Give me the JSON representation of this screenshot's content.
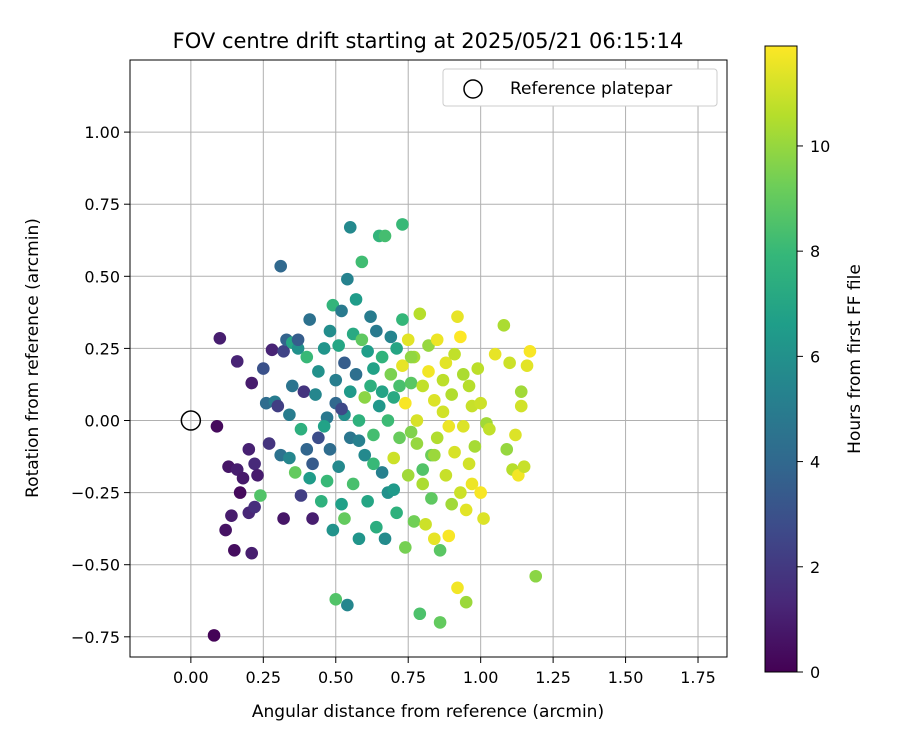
{
  "chart_data": {
    "type": "scatter",
    "title": "FOV centre drift starting at 2025/05/21 06:15:14",
    "xlabel": "Angular distance from reference (arcmin)",
    "ylabel": "Rotation from reference (arcmin)",
    "xlim": [
      -0.21,
      1.85
    ],
    "ylim": [
      -0.82,
      1.25
    ],
    "xticks": [
      0.0,
      0.25,
      0.5,
      0.75,
      1.0,
      1.25,
      1.5,
      1.75
    ],
    "xtick_labels": [
      "0.00",
      "0.25",
      "0.50",
      "0.75",
      "1.00",
      "1.25",
      "1.50",
      "1.75"
    ],
    "yticks": [
      -0.75,
      -0.5,
      -0.25,
      0.0,
      0.25,
      0.5,
      0.75,
      1.0
    ],
    "ytick_labels": [
      "−0.75",
      "−0.50",
      "−0.25",
      "0.00",
      "0.25",
      "0.50",
      "0.75",
      "1.00"
    ],
    "grid": true,
    "legend": {
      "placement": "top-right",
      "entries": [
        "Reference platepar"
      ]
    },
    "reference_point": {
      "x": 0.0,
      "y": 0.0
    },
    "colorbar": {
      "label": "Hours from first FF file",
      "range": [
        0,
        11.9
      ],
      "ticks": [
        0,
        2,
        4,
        6,
        8,
        10
      ],
      "tick_labels": [
        "0",
        "2",
        "4",
        "6",
        "8",
        "10"
      ],
      "colormap": [
        "#440154",
        "#482878",
        "#3e4989",
        "#31688e",
        "#26828e",
        "#1f9e89",
        "#35b779",
        "#6ece58",
        "#b5de2b",
        "#fde725"
      ]
    },
    "points": [
      [
        0.08,
        -0.745,
        0.1
      ],
      [
        0.09,
        -0.02,
        0.3
      ],
      [
        0.1,
        0.285,
        1.0
      ],
      [
        0.12,
        -0.38,
        0.6
      ],
      [
        0.13,
        -0.16,
        0.7
      ],
      [
        0.14,
        -0.33,
        0.9
      ],
      [
        0.15,
        -0.45,
        0.4
      ],
      [
        0.16,
        -0.17,
        1.0
      ],
      [
        0.16,
        0.205,
        1.2
      ],
      [
        0.17,
        -0.25,
        0.3
      ],
      [
        0.18,
        -0.2,
        0.8
      ],
      [
        0.2,
        -0.32,
        1.3
      ],
      [
        0.2,
        -0.1,
        1.1
      ],
      [
        0.21,
        -0.46,
        1.0
      ],
      [
        0.21,
        0.13,
        0.9
      ],
      [
        0.22,
        -0.15,
        1.4
      ],
      [
        0.22,
        -0.3,
        1.6
      ],
      [
        0.23,
        -0.19,
        0.9
      ],
      [
        0.24,
        -0.26,
        8.6
      ],
      [
        0.25,
        0.18,
        3.0
      ],
      [
        0.26,
        0.06,
        4.2
      ],
      [
        0.27,
        -0.08,
        1.8
      ],
      [
        0.28,
        0.245,
        1.2
      ],
      [
        0.29,
        0.065,
        5.0
      ],
      [
        0.3,
        0.05,
        2.2
      ],
      [
        0.31,
        -0.12,
        4.5
      ],
      [
        0.31,
        0.535,
        4.0
      ],
      [
        0.32,
        -0.34,
        0.7
      ],
      [
        0.32,
        0.24,
        2.4
      ],
      [
        0.33,
        0.28,
        3.8
      ],
      [
        0.34,
        -0.13,
        5.5
      ],
      [
        0.34,
        0.02,
        5.0
      ],
      [
        0.35,
        0.27,
        7.0
      ],
      [
        0.35,
        0.12,
        4.6
      ],
      [
        0.36,
        -0.18,
        9.0
      ],
      [
        0.37,
        0.25,
        6.0
      ],
      [
        0.37,
        0.28,
        3.5
      ],
      [
        0.38,
        -0.26,
        2.2
      ],
      [
        0.38,
        -0.03,
        7.5
      ],
      [
        0.39,
        0.1,
        1.8
      ],
      [
        0.4,
        -0.1,
        3.9
      ],
      [
        0.4,
        0.22,
        8.0
      ],
      [
        0.41,
        0.35,
        4.4
      ],
      [
        0.41,
        -0.2,
        6.5
      ],
      [
        0.42,
        -0.34,
        1.0
      ],
      [
        0.43,
        0.09,
        5.5
      ],
      [
        0.44,
        -0.06,
        2.8
      ],
      [
        0.44,
        0.17,
        6.0
      ],
      [
        0.45,
        -0.28,
        7.6
      ],
      [
        0.46,
        0.25,
        6.2
      ],
      [
        0.47,
        0.01,
        4.8
      ],
      [
        0.47,
        -0.21,
        8.0
      ],
      [
        0.48,
        0.31,
        5.8
      ],
      [
        0.48,
        -0.1,
        4.2
      ],
      [
        0.49,
        0.4,
        7.8
      ],
      [
        0.49,
        -0.38,
        6.1
      ],
      [
        0.5,
        0.14,
        5.1
      ],
      [
        0.5,
        -0.62,
        8.6
      ],
      [
        0.5,
        0.06,
        4.0
      ],
      [
        0.51,
        0.26,
        7.0
      ],
      [
        0.51,
        -0.16,
        5.6
      ],
      [
        0.52,
        0.38,
        4.9
      ],
      [
        0.52,
        -0.29,
        6.7
      ],
      [
        0.53,
        0.2,
        3.5
      ],
      [
        0.53,
        0.02,
        5.9
      ],
      [
        0.53,
        -0.34,
        9.0
      ],
      [
        0.54,
        0.49,
        5.3
      ],
      [
        0.54,
        -0.64,
        5.5
      ],
      [
        0.55,
        0.67,
        5.6
      ],
      [
        0.55,
        0.1,
        6.4
      ],
      [
        0.55,
        -0.06,
        4.7
      ],
      [
        0.56,
        0.3,
        7.2
      ],
      [
        0.56,
        -0.22,
        8.4
      ],
      [
        0.57,
        0.42,
        6.5
      ],
      [
        0.57,
        0.16,
        4.3
      ],
      [
        0.58,
        -0.41,
        6.2
      ],
      [
        0.58,
        0.0,
        7.6
      ],
      [
        0.59,
        0.28,
        8.9
      ],
      [
        0.59,
        0.55,
        8.2
      ],
      [
        0.6,
        -0.12,
        5.6
      ],
      [
        0.6,
        0.08,
        9.8
      ],
      [
        0.61,
        0.24,
        6.6
      ],
      [
        0.61,
        -0.28,
        7.0
      ],
      [
        0.62,
        0.36,
        5.0
      ],
      [
        0.62,
        0.12,
        7.5
      ],
      [
        0.63,
        -0.05,
        8.3
      ],
      [
        0.63,
        0.18,
        6.8
      ],
      [
        0.64,
        -0.37,
        7.4
      ],
      [
        0.64,
        0.31,
        4.9
      ],
      [
        0.65,
        0.64,
        7.8
      ],
      [
        0.65,
        0.05,
        6.3
      ],
      [
        0.66,
        -0.18,
        5.2
      ],
      [
        0.66,
        0.22,
        7.7
      ],
      [
        0.67,
        -0.41,
        5.7
      ],
      [
        0.67,
        0.64,
        8.3
      ],
      [
        0.68,
        0.0,
        8.1
      ],
      [
        0.68,
        -0.25,
        6.0
      ],
      [
        0.69,
        0.16,
        9.5
      ],
      [
        0.69,
        0.29,
        5.4
      ],
      [
        0.7,
        -0.13,
        11.0
      ],
      [
        0.7,
        0.08,
        7.2
      ],
      [
        0.71,
        -0.32,
        7.6
      ],
      [
        0.71,
        0.25,
        7.0
      ],
      [
        0.72,
        0.12,
        8.4
      ],
      [
        0.72,
        -0.06,
        9.1
      ],
      [
        0.73,
        0.68,
        8.0
      ],
      [
        0.73,
        0.19,
        11.5
      ],
      [
        0.74,
        -0.44,
        9.4
      ],
      [
        0.74,
        0.06,
        11.8
      ],
      [
        0.75,
        -0.19,
        10.2
      ],
      [
        0.75,
        0.28,
        11.4
      ],
      [
        0.76,
        -0.04,
        9.6
      ],
      [
        0.76,
        0.13,
        8.8
      ],
      [
        0.77,
        -0.35,
        9.3
      ],
      [
        0.77,
        0.22,
        10.3
      ],
      [
        0.78,
        -0.08,
        10.0
      ],
      [
        0.78,
        0.0,
        11.2
      ],
      [
        0.79,
        0.37,
        10.6
      ],
      [
        0.79,
        -0.67,
        8.5
      ],
      [
        0.8,
        0.12,
        10.8
      ],
      [
        0.8,
        -0.22,
        10.4
      ],
      [
        0.81,
        -0.36,
        11.0
      ],
      [
        0.82,
        0.26,
        10.0
      ],
      [
        0.82,
        0.17,
        11.7
      ],
      [
        0.83,
        -0.12,
        9.2
      ],
      [
        0.83,
        -0.27,
        8.9
      ],
      [
        0.84,
        0.07,
        11.3
      ],
      [
        0.84,
        -0.41,
        11.5
      ],
      [
        0.85,
        0.28,
        11.6
      ],
      [
        0.85,
        -0.06,
        10.5
      ],
      [
        0.86,
        -0.7,
        9.0
      ],
      [
        0.86,
        -0.45,
        8.8
      ],
      [
        0.87,
        0.14,
        10.7
      ],
      [
        0.87,
        0.03,
        11.1
      ],
      [
        0.88,
        -0.19,
        10.9
      ],
      [
        0.88,
        0.2,
        11.4
      ],
      [
        0.89,
        -0.4,
        11.8
      ],
      [
        0.89,
        -0.02,
        11.6
      ],
      [
        0.9,
        -0.29,
        10.2
      ],
      [
        0.9,
        0.09,
        10.5
      ],
      [
        0.91,
        0.23,
        10.8
      ],
      [
        0.91,
        -0.11,
        11.2
      ],
      [
        0.92,
        0.36,
        11.5
      ],
      [
        0.92,
        -0.58,
        11.7
      ],
      [
        0.93,
        0.29,
        11.9
      ],
      [
        0.93,
        -0.25,
        11.0
      ],
      [
        0.94,
        0.16,
        10.4
      ],
      [
        0.94,
        -0.02,
        11.3
      ],
      [
        0.95,
        -0.63,
        10.1
      ],
      [
        0.95,
        -0.31,
        11.4
      ],
      [
        0.96,
        0.12,
        10.6
      ],
      [
        0.96,
        -0.15,
        11.1
      ],
      [
        0.97,
        0.05,
        10.9
      ],
      [
        0.97,
        -0.22,
        11.6
      ],
      [
        0.98,
        -0.09,
        10.3
      ],
      [
        0.99,
        0.18,
        10.7
      ],
      [
        1.0,
        -0.25,
        11.8
      ],
      [
        1.0,
        0.06,
        11.0
      ],
      [
        1.01,
        -0.34,
        11.3
      ],
      [
        1.02,
        -0.01,
        10.2
      ],
      [
        1.03,
        -0.03,
        10.8
      ],
      [
        1.05,
        0.23,
        11.5
      ],
      [
        1.08,
        0.33,
        10.4
      ],
      [
        1.09,
        -0.1,
        10.0
      ],
      [
        1.1,
        0.2,
        11.0
      ],
      [
        1.11,
        -0.17,
        10.6
      ],
      [
        1.12,
        -0.05,
        11.3
      ],
      [
        1.13,
        -0.19,
        11.7
      ],
      [
        1.14,
        0.1,
        10.2
      ],
      [
        1.14,
        0.05,
        11.1
      ],
      [
        1.15,
        -0.16,
        10.9
      ],
      [
        1.16,
        0.19,
        11.4
      ],
      [
        1.17,
        0.24,
        11.8
      ],
      [
        1.19,
        -0.54,
        9.8
      ],
      [
        0.42,
        -0.15,
        3.4
      ],
      [
        0.46,
        -0.02,
        6.8
      ],
      [
        0.52,
        0.04,
        2.6
      ],
      [
        0.58,
        -0.07,
        5.2
      ],
      [
        0.63,
        -0.15,
        8.0
      ],
      [
        0.66,
        0.1,
        6.9
      ],
      [
        0.7,
        -0.24,
        6.4
      ],
      [
        0.73,
        0.35,
        7.9
      ],
      [
        0.76,
        0.22,
        9.9
      ],
      [
        0.8,
        -0.17,
        8.6
      ],
      [
        0.84,
        -0.12,
        10.1
      ]
    ]
  }
}
